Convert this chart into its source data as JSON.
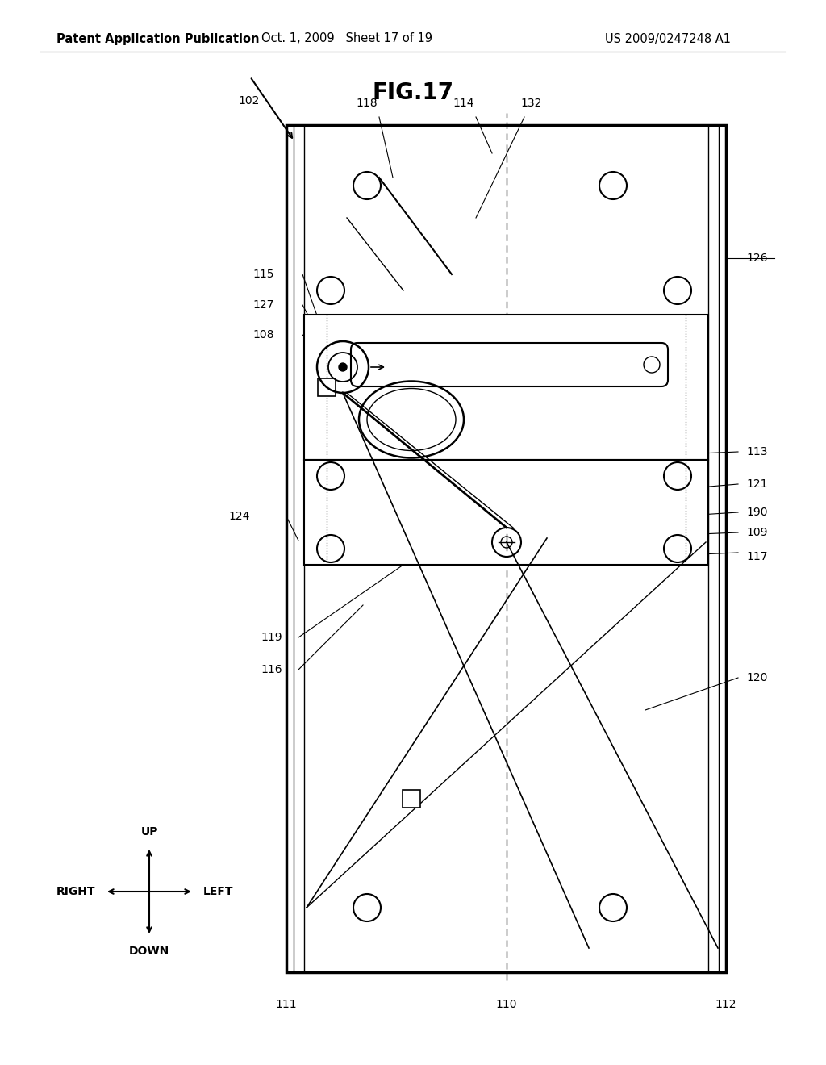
{
  "title": "FIG.17",
  "header_left": "Patent Application Publication",
  "header_center": "Oct. 1, 2009   Sheet 17 of 19",
  "header_right": "US 2009/0247248 A1",
  "bg_color": "#ffffff",
  "fig_title_fontsize": 20,
  "header_fontsize": 10.5,
  "label_fontsize": 10
}
